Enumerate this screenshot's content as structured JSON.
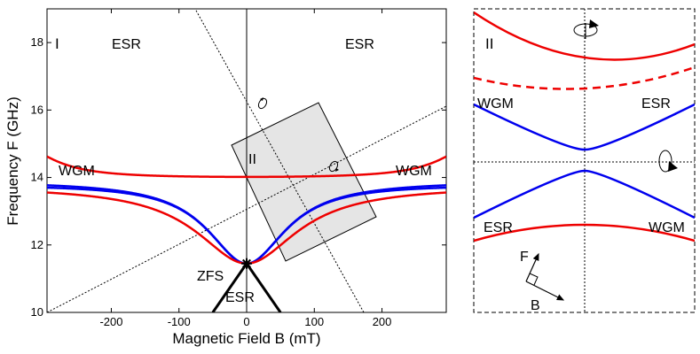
{
  "chart_data": [
    {
      "panel": "I",
      "type": "line",
      "xlabel": "Magnetic Field B (mT)",
      "ylabel": "Frequency F (GHz)",
      "xlim": [
        -295,
        295
      ],
      "ylim": [
        10,
        19
      ],
      "xticks": [
        -200,
        -100,
        0,
        100,
        200
      ],
      "xtick_labels": [
        "-200",
        "-100",
        "0",
        "100",
        "200"
      ],
      "yticks": [
        10,
        12,
        14,
        16,
        18
      ],
      "ytick_labels": [
        "10",
        "12",
        "14",
        "16",
        "18"
      ],
      "zfs": 11.45,
      "wgm": 13.9,
      "esr_slope": 0.0285,
      "esr_width": 85,
      "cross_field": 85,
      "coupling_outer": 0.55,
      "coupling_inner": 0.12,
      "series": [
        {
          "name": "ESR",
          "color": "#ee0000"
        },
        {
          "name": "WGM",
          "color": "#0000ee"
        }
      ],
      "labels": {
        "panel": "I",
        "esr_left": "ESR",
        "esr_right": "ESR",
        "wgm_left": "WGM",
        "wgm_right": "WGM",
        "zfs": "ZFS",
        "esr_bottom": "ESR",
        "region": "II"
      }
    },
    {
      "panel": "II",
      "type": "line",
      "labels": {
        "panel": "II",
        "wgm_top": "WGM",
        "esr_top": "ESR",
        "esr_bottom": "ESR",
        "wgm_bottom": "WGM",
        "axis_f": "F",
        "axis_b": "B"
      },
      "series": [
        {
          "name": "ESR",
          "color": "#ee0000"
        },
        {
          "name": "WGM",
          "color": "#0000ee"
        }
      ]
    }
  ]
}
